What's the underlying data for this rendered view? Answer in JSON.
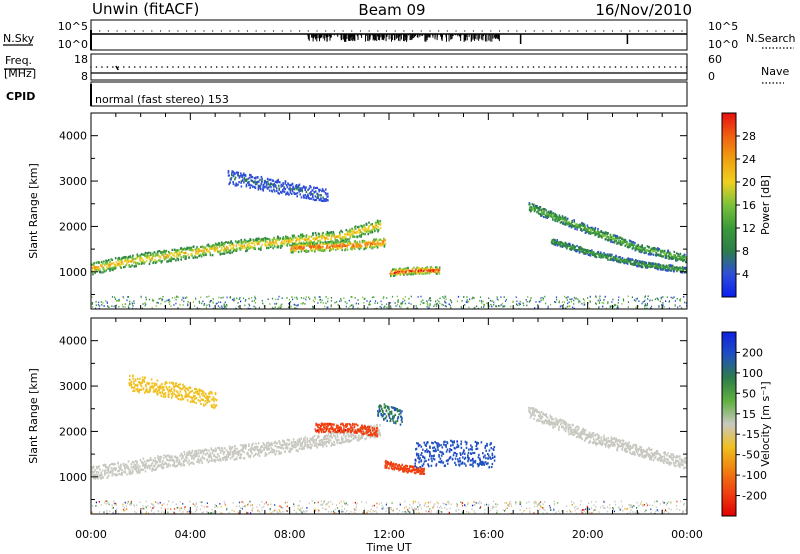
{
  "header": {
    "site": "Unwin (fitACF)",
    "beam": "Beam 09",
    "date": "16/Nov/2010"
  },
  "strip": {
    "nsky_label": "N.Sky",
    "nsky_ticks": [
      "10^5",
      "10^0"
    ],
    "nsearch_label": "N.Search",
    "nsearch_ticks": [
      "10^5",
      "10^0"
    ],
    "freq_label_1": "Freq.",
    "freq_label_2": "[MHz]",
    "freq_ticks": [
      "18",
      "8"
    ],
    "nave_label": "Nave",
    "nave_ticks": [
      "60",
      "0"
    ],
    "cpid_label": "CPID",
    "cpid_value": "normal (fast stereo) 153"
  },
  "colors": {
    "power_scale": [
      "#0a1cf0",
      "#2f4fd8",
      "#2d7d4a",
      "#3a9a3a",
      "#7ac23a",
      "#f0d020",
      "#f0a010",
      "#f06010",
      "#e81010"
    ],
    "velocity_scale": [
      "#1020e0",
      "#2050c0",
      "#2d7d4a",
      "#60b040",
      "#c8c8c0",
      "#f0c020",
      "#f08010",
      "#f04010",
      "#e00000"
    ],
    "gray_scatter": "#c8c8c0"
  },
  "chart_data": [
    {
      "type": "heatmap",
      "panel": "power",
      "xlabel": "",
      "ylabel": "Slant Range [km]",
      "xlim": [
        0,
        24
      ],
      "ylim": [
        180,
        4500
      ],
      "yticks": [
        "1000",
        "2000",
        "3000",
        "4000"
      ],
      "colorbar": {
        "label": "Power [dB]",
        "ticks": [
          "28",
          "24",
          "20",
          "16",
          "12",
          "8",
          "4"
        ],
        "range": [
          0,
          30
        ]
      },
      "echo_bands": [
        {
          "x": [
            0.0,
            2.0,
            4.0,
            6.0,
            8.0,
            10.0,
            11.6
          ],
          "y": [
            1100,
            1300,
            1450,
            1600,
            1700,
            1800,
            2050
          ],
          "width_km": 260,
          "peak_db": 22
        },
        {
          "x": [
            8.0,
            9.5,
            11.0,
            11.8
          ],
          "y": [
            1550,
            1580,
            1620,
            1680
          ],
          "width_km": 200,
          "peak_db": 28
        },
        {
          "x": [
            12.0,
            13.0,
            14.0
          ],
          "y": [
            1000,
            1050,
            1050
          ],
          "width_km": 150,
          "peak_db": 30
        },
        {
          "x": [
            17.6,
            19.0,
            20.5,
            22.0,
            24.0
          ],
          "y": [
            2450,
            2150,
            1850,
            1550,
            1300
          ],
          "width_km": 180,
          "peak_db": 14
        },
        {
          "x": [
            18.5,
            20.0,
            22.0,
            24.0
          ],
          "y": [
            1700,
            1450,
            1200,
            1050
          ],
          "width_km": 130,
          "peak_db": 12
        },
        {
          "x": [
            5.5,
            7.5,
            9.5
          ],
          "y": [
            3100,
            2900,
            2700
          ],
          "width_km": 300,
          "peak_db": 6
        }
      ]
    },
    {
      "type": "heatmap",
      "panel": "velocity",
      "xlabel": "Time UT",
      "ylabel": "Slant Range [km]",
      "xlim": [
        0,
        24
      ],
      "ylim": [
        180,
        4500
      ],
      "xticks": [
        "00:00",
        "04:00",
        "08:00",
        "12:00",
        "16:00",
        "20:00",
        "00:00"
      ],
      "yticks": [
        "1000",
        "2000",
        "3000",
        "4000"
      ],
      "colorbar": {
        "label": "Velocity [m s⁻¹]",
        "ticks": [
          "200",
          "100",
          "50",
          "15",
          "-15",
          "-50",
          "-100",
          "-200"
        ],
        "range": [
          -250,
          250
        ]
      },
      "echo_bands": [
        {
          "x": [
            0.0,
            4.0,
            8.0,
            11.6
          ],
          "y": [
            1100,
            1450,
            1700,
            2050
          ],
          "width_km": 300,
          "velocity_ms": 0
        },
        {
          "x": [
            9.0,
            10.5,
            11.5
          ],
          "y": [
            2100,
            2100,
            2000
          ],
          "width_km": 200,
          "velocity_ms": -200
        },
        {
          "x": [
            11.8,
            12.6,
            13.4
          ],
          "y": [
            1300,
            1200,
            1150
          ],
          "width_km": 150,
          "velocity_ms": -200
        },
        {
          "x": [
            13.0,
            14.5,
            16.2
          ],
          "y": [
            1500,
            1550,
            1500
          ],
          "width_km": 550,
          "velocity_ms": 200
        },
        {
          "x": [
            11.5,
            12.5
          ],
          "y": [
            2500,
            2300
          ],
          "width_km": 350,
          "velocity_ms": 150
        },
        {
          "x": [
            17.6,
            20.0,
            24.0
          ],
          "y": [
            2450,
            1900,
            1300
          ],
          "width_km": 250,
          "velocity_ms": 0
        },
        {
          "x": [
            1.5,
            3.5,
            5.0
          ],
          "y": [
            3100,
            2900,
            2700
          ],
          "width_km": 350,
          "velocity_ms": -60
        }
      ]
    }
  ]
}
